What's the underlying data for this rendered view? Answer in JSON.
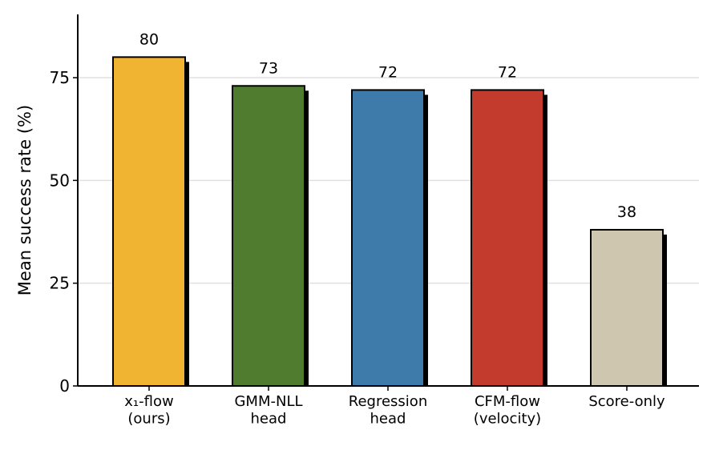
{
  "chart_data": {
    "type": "bar",
    "ylabel": "Mean success rate (%)",
    "categories": [
      "x₁-flow\n(ours)",
      "GMM-NLL\nhead",
      "Regression\nhead",
      "CFM-flow\n(velocity)",
      "Score-only"
    ],
    "values": [
      80,
      73,
      72,
      72,
      38
    ],
    "colors": [
      "#f0b432",
      "#507c2f",
      "#3e7aaa",
      "#c23b2c",
      "#cfc6b0"
    ],
    "ylim": [
      0,
      90
    ],
    "yticks": [
      0,
      25,
      50,
      75
    ],
    "grid": true
  }
}
